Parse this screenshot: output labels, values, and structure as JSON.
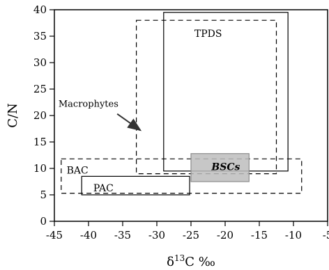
{
  "chart_data": {
    "type": "scatter",
    "title": "",
    "xlabel_parts": {
      "pre": "δ",
      "sup": "13",
      "post": "C ‰"
    },
    "ylabel": "C/N",
    "xlim": [
      -45,
      -5
    ],
    "ylim": [
      0,
      40
    ],
    "x_ticks": [
      -45,
      -40,
      -35,
      -30,
      -25,
      -20,
      -15,
      -10,
      -5
    ],
    "y_ticks": [
      0,
      5,
      10,
      15,
      20,
      25,
      30,
      35,
      40
    ],
    "grid": false,
    "regions": [
      {
        "name": "TPDS",
        "x": [
          -29,
          -10.8
        ],
        "y": [
          9.5,
          39.5
        ],
        "style": "solid",
        "fill": "none",
        "label": "TPDS",
        "label_at": [
          -24.5,
          35.5
        ]
      },
      {
        "name": "Macrophytes",
        "x": [
          -33,
          -12.5
        ],
        "y": [
          9,
          38
        ],
        "style": "dashed",
        "fill": "none",
        "label": "",
        "label_at": null
      },
      {
        "name": "BSCs",
        "x": [
          -25,
          -16.5
        ],
        "y": [
          7.5,
          12.8
        ],
        "style": "solid",
        "fill": "#bdbdbd",
        "label": "BSCs",
        "label_at": [
          -22,
          10.3
        ]
      },
      {
        "name": "BAC",
        "x": [
          -44,
          -8.8
        ],
        "y": [
          5.3,
          11.8
        ],
        "style": "dashed",
        "fill": "none",
        "label": "BAC",
        "label_at": [
          -43.2,
          9.7
        ]
      },
      {
        "name": "PAC",
        "x": [
          -41,
          -25.2
        ],
        "y": [
          5.0,
          8.5
        ],
        "style": "solid",
        "fill": "none",
        "label": "PAC",
        "label_at": [
          -39.3,
          6.3
        ]
      }
    ],
    "annotations": [
      {
        "text": "Macrophytes",
        "text_at": [
          -44.4,
          22.2
        ],
        "arrow_from": [
          -35.8,
          20.3
        ],
        "arrow_to": [
          -32.4,
          17.2
        ]
      }
    ]
  }
}
